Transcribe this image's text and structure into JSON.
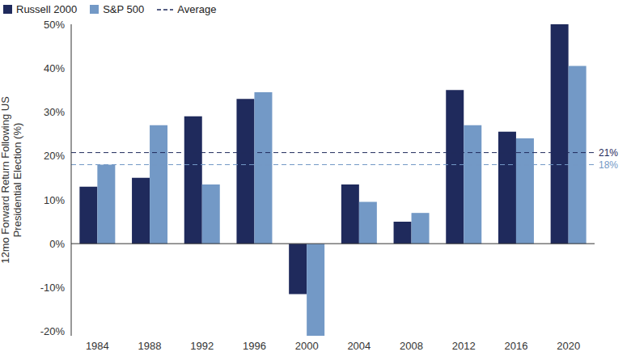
{
  "chart_data": {
    "type": "bar",
    "categories": [
      "1984",
      "1988",
      "1992",
      "1996",
      "2000",
      "2004",
      "2008",
      "2012",
      "2016",
      "2020"
    ],
    "series": [
      {
        "name": "Russell 2000",
        "color": "#1f2a5c",
        "values": [
          13,
          15,
          29,
          33,
          -11.5,
          13.5,
          5,
          35,
          25.5,
          50
        ]
      },
      {
        "name": "S&P 500",
        "color": "#7399c6",
        "values": [
          18,
          27,
          13.5,
          34.5,
          -21,
          9.5,
          7,
          27,
          24,
          40.5
        ]
      }
    ],
    "average": {
      "name": "Average",
      "values": [
        20.75,
        18
      ],
      "value_labels": [
        "21%",
        "18%"
      ],
      "colors": [
        "#1f2a5c",
        "#7399c6"
      ],
      "line_style": "dashed"
    },
    "y_label": "12mo Forward Return Following US Presidential Election (%)",
    "ylim": [
      -21,
      50
    ],
    "yticks": [
      {
        "value": -20,
        "label": "-20%"
      },
      {
        "value": -10,
        "label": "-10%"
      },
      {
        "value": 0,
        "label": "0%"
      },
      {
        "value": 10,
        "label": "10%"
      },
      {
        "value": 20,
        "label": "20%"
      },
      {
        "value": 30,
        "label": "30%"
      },
      {
        "value": 40,
        "label": "40%"
      },
      {
        "value": 50,
        "label": "50%"
      }
    ],
    "grid": false,
    "legend": "top-left"
  }
}
